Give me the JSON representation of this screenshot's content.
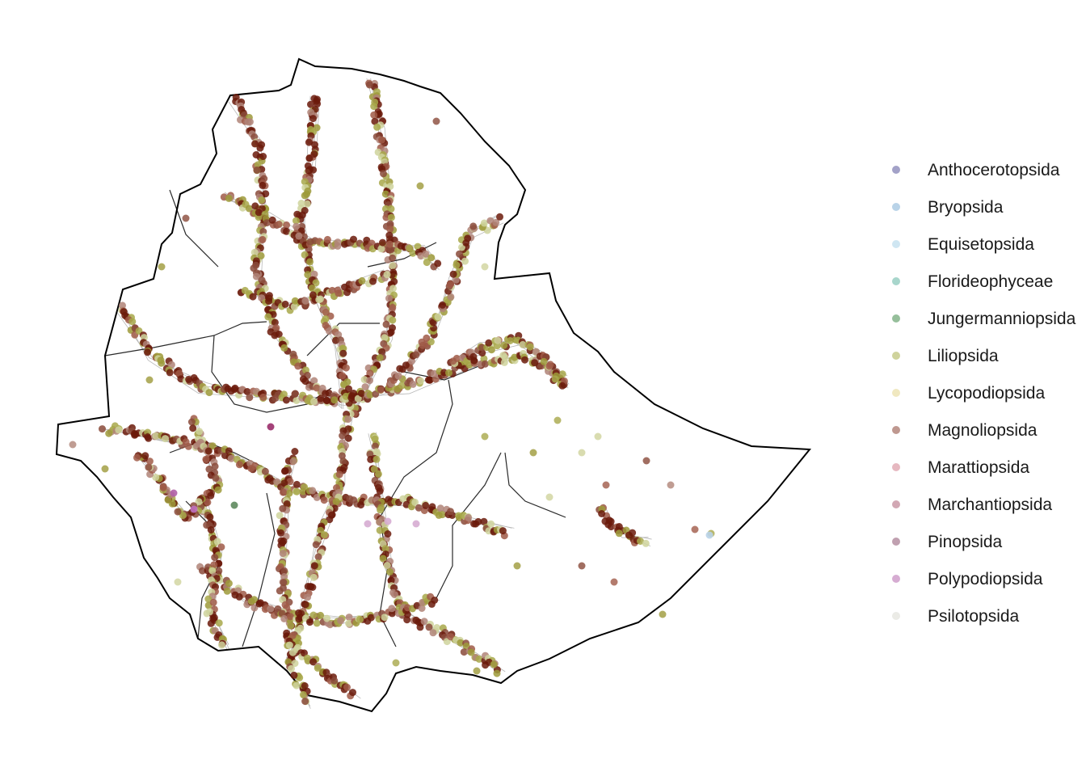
{
  "map": {
    "outline_color": "#000000",
    "internal_boundary_color": "#2a2a2a",
    "road_color": "#b8b8b8",
    "dominant_point_color": "#6b1a0a"
  },
  "legend": {
    "items": [
      {
        "label": "Anthocerotopsida",
        "color": "#a3a2c8"
      },
      {
        "label": "Bryopsida",
        "color": "#b9d3e8"
      },
      {
        "label": "Equisetopsida",
        "color": "#cfe6f2"
      },
      {
        "label": "Florideophyceae",
        "color": "#a8d6cc"
      },
      {
        "label": "Jungermanniopsida",
        "color": "#96bf9b"
      },
      {
        "label": "Liliopsida",
        "color": "#cfd39c"
      },
      {
        "label": "Lycopodiopsida",
        "color": "#f0e8c0"
      },
      {
        "label": "Magnoliopsida",
        "color": "#bf9890"
      },
      {
        "label": "Marattiopsida",
        "color": "#e6b8c0"
      },
      {
        "label": "Marchantiopsida",
        "color": "#d2a8b4"
      },
      {
        "label": "Pinopsida",
        "color": "#c0a0b0"
      },
      {
        "label": "Polypodiopsida",
        "color": "#d6acd2"
      },
      {
        "label": "Psilotopsida",
        "color": "#ebebe6"
      }
    ]
  }
}
